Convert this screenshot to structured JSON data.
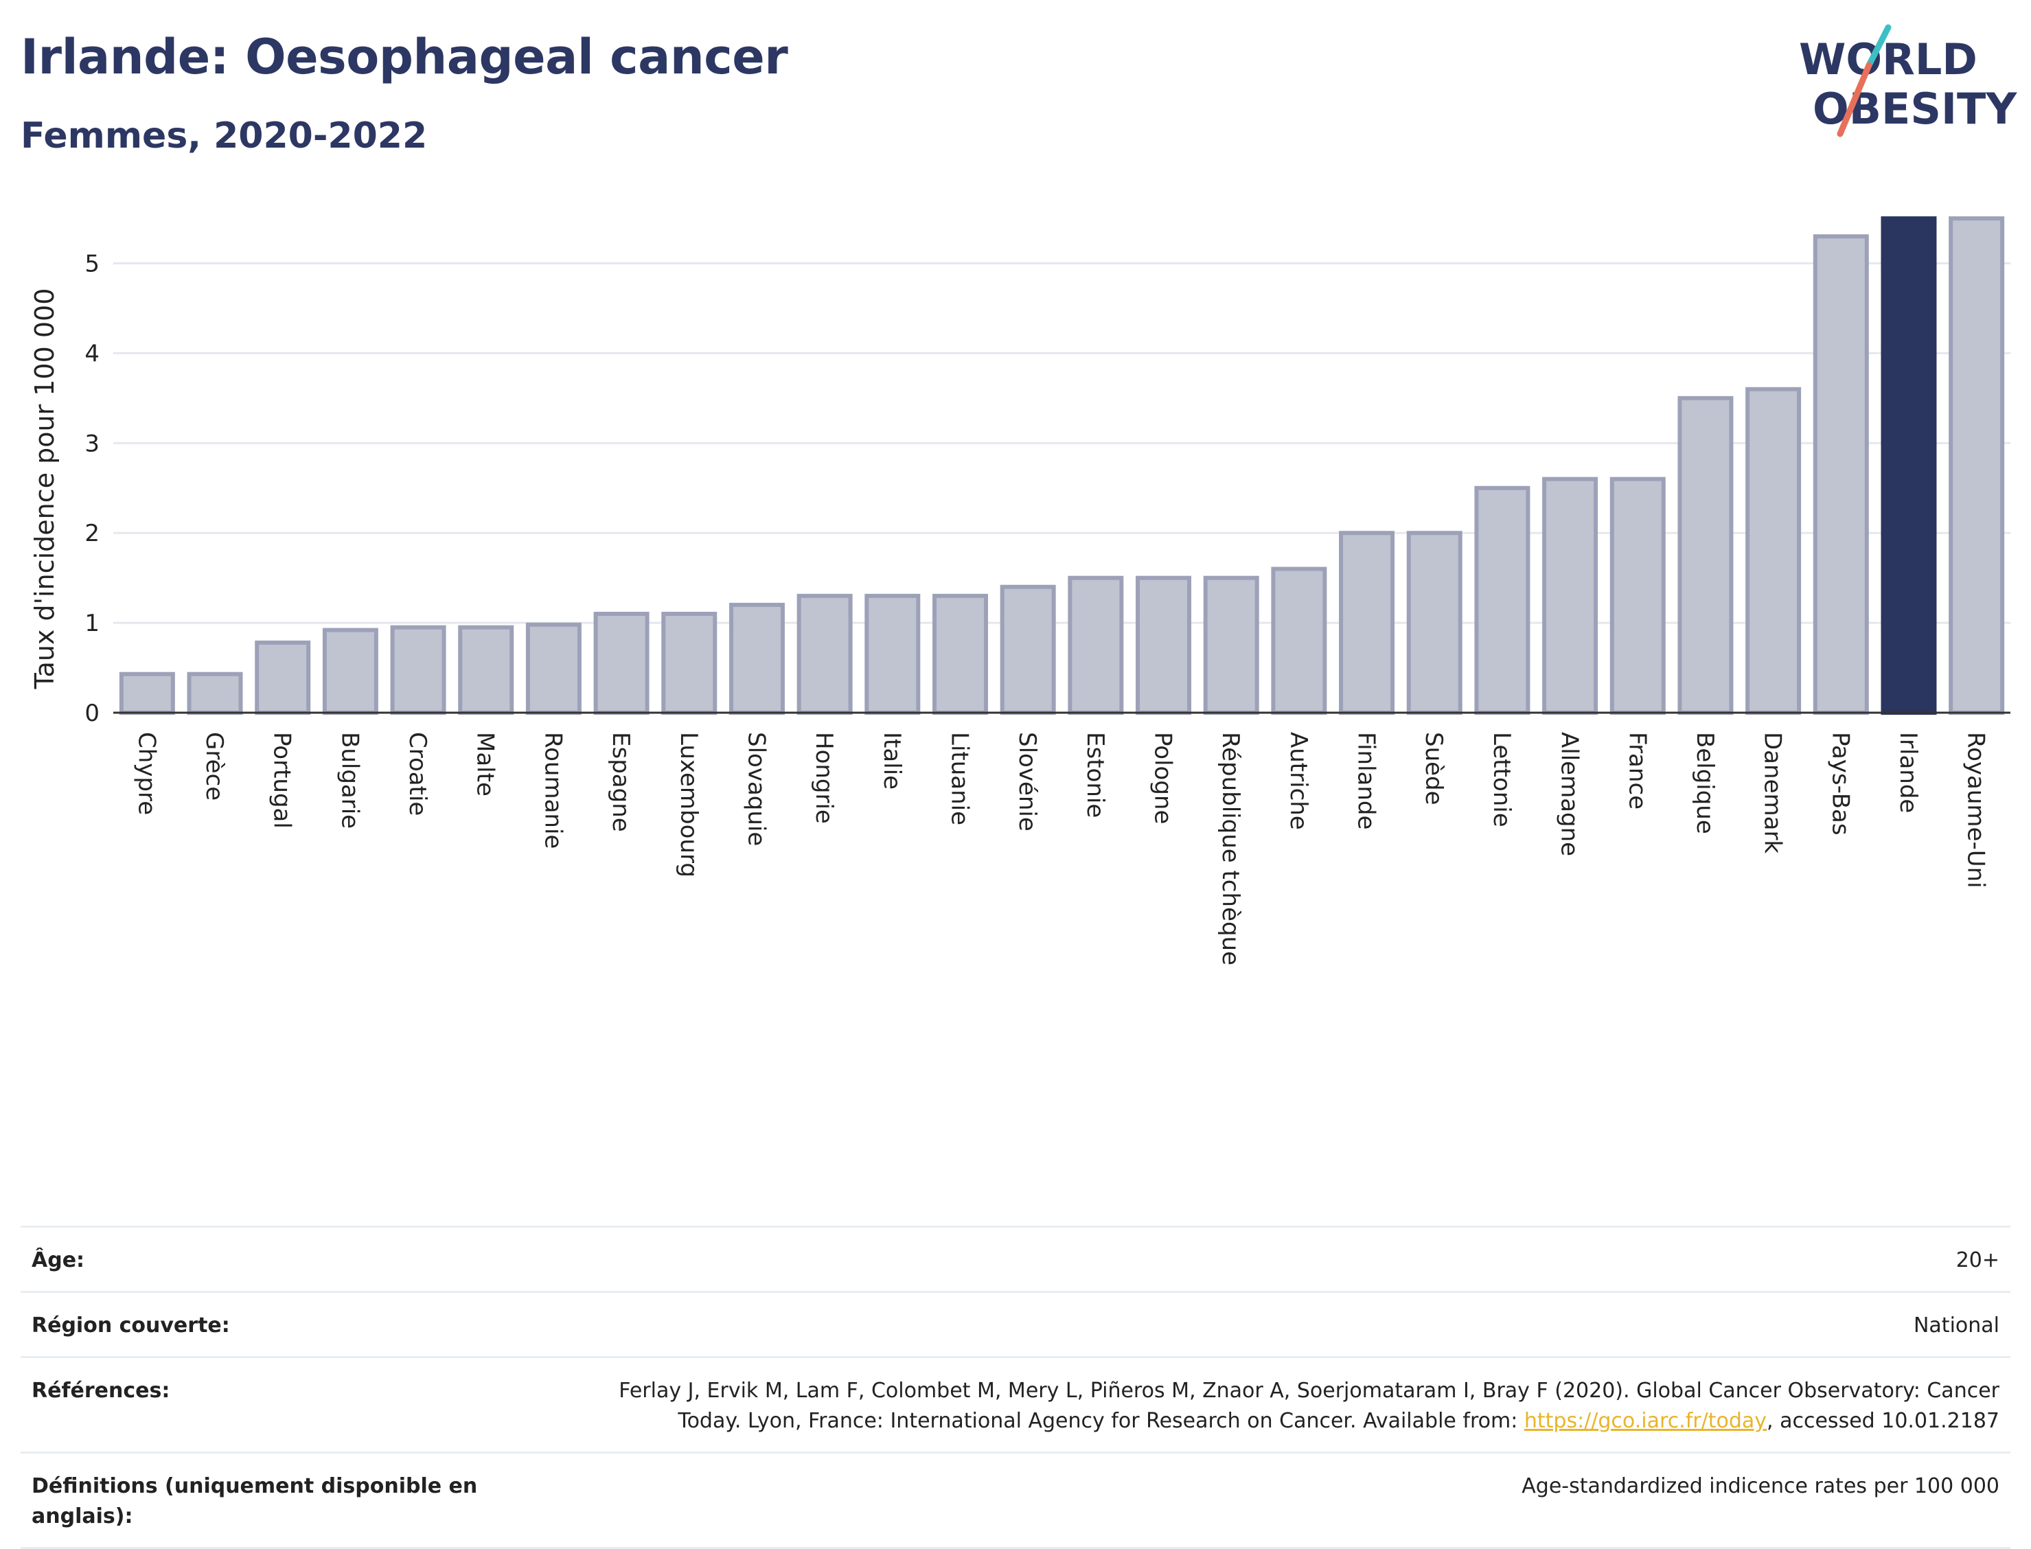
{
  "header": {
    "title": "Irlande: Oesophageal cancer",
    "subtitle": "Femmes, 2020-2022"
  },
  "logo": {
    "line1": "WORLD",
    "line2": "OBESITY",
    "accent_colors": [
      "#3dbfc4",
      "#e8705a"
    ]
  },
  "chart_data": {
    "type": "bar",
    "title": "",
    "xlabel": "",
    "ylabel": "Taux d'incidence pour 100 000",
    "ylim": [
      0,
      5.6
    ],
    "yticks": [
      0,
      1,
      2,
      3,
      4,
      5
    ],
    "grid": true,
    "highlight": "Irlande",
    "colors": {
      "bar": "#c0c3d0",
      "bar_border": "#9da1b8",
      "highlight": "#2a3560",
      "grid": "#e6e8ee"
    },
    "categories": [
      "Chypre",
      "Grèce",
      "Portugal",
      "Bulgarie",
      "Croatie",
      "Malte",
      "Roumanie",
      "Espagne",
      "Luxembourg",
      "Slovaquie",
      "Hongrie",
      "Italie",
      "Lituanie",
      "Slovénie",
      "Estonie",
      "Pologne",
      "République tchèque",
      "Autriche",
      "Finlande",
      "Suède",
      "Lettonie",
      "Allemagne",
      "France",
      "Belgique",
      "Danemark",
      "Pays-Bas",
      "Irlande",
      "Royaume-Uni"
    ],
    "values": [
      0.43,
      0.43,
      0.78,
      0.92,
      0.95,
      0.95,
      0.98,
      1.1,
      1.1,
      1.2,
      1.3,
      1.3,
      1.3,
      1.4,
      1.5,
      1.5,
      1.5,
      1.6,
      2.0,
      2.0,
      2.5,
      2.6,
      2.6,
      3.5,
      3.6,
      5.3,
      5.5,
      5.5
    ]
  },
  "meta": [
    {
      "key": "Âge:",
      "value": "20+"
    },
    {
      "key": "Région couverte:",
      "value": "National"
    },
    {
      "key": "Références:",
      "value_pre": "Ferlay J, Ervik M, Lam F, Colombet M, Mery L, Piñeros M, Znaor A, Soerjomataram I, Bray F (2020). Global Cancer Observatory: Cancer Today. Lyon, France: International Agency for Research on Cancer. Available from: ",
      "link": "https://gco.iarc.fr/today",
      "value_post": ", accessed 10.01.2187"
    },
    {
      "key": "Définitions (uniquement disponible en anglais):",
      "value": "Age-standardized indicence rates per 100 000"
    }
  ]
}
